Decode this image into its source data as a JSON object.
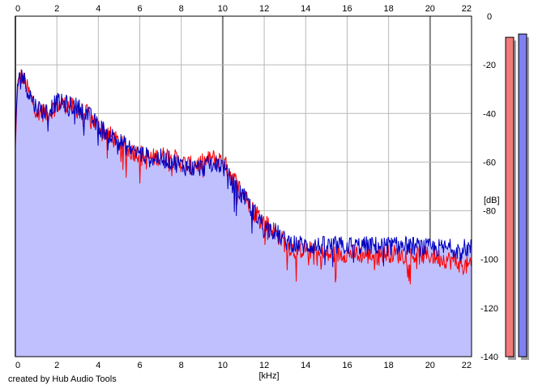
{
  "chart_data": {
    "type": "area",
    "title": "",
    "xlabel": "[kHz]",
    "ylabel": "[dB]",
    "xlim": [
      0,
      22
    ],
    "ylim": [
      -140,
      0
    ],
    "x_ticks": [
      0,
      2,
      4,
      6,
      8,
      10,
      12,
      14,
      16,
      18,
      20,
      22
    ],
    "y_ticks": [
      0,
      -20,
      -40,
      -60,
      -80,
      -100,
      -120,
      -140
    ],
    "grid": true,
    "fill_color": "#c0c0ff",
    "series": [
      {
        "color": "#ff0000",
        "envelope": [
          [
            0,
            -55
          ],
          [
            0.1,
            -28
          ],
          [
            0.3,
            -24
          ],
          [
            0.6,
            -30
          ],
          [
            1.0,
            -38
          ],
          [
            1.5,
            -40
          ],
          [
            2.0,
            -36
          ],
          [
            2.5,
            -36
          ],
          [
            3.0,
            -38
          ],
          [
            3.5,
            -40
          ],
          [
            4.0,
            -45
          ],
          [
            4.5,
            -48
          ],
          [
            5.0,
            -52
          ],
          [
            5.5,
            -55
          ],
          [
            6.0,
            -56
          ],
          [
            6.5,
            -58
          ],
          [
            7.0,
            -57
          ],
          [
            7.5,
            -57
          ],
          [
            8.0,
            -60
          ],
          [
            8.5,
            -61
          ],
          [
            9.0,
            -60
          ],
          [
            9.5,
            -58
          ],
          [
            10.0,
            -59
          ],
          [
            10.5,
            -66
          ],
          [
            11.0,
            -73
          ],
          [
            11.5,
            -79
          ],
          [
            12.0,
            -84
          ],
          [
            12.5,
            -88
          ],
          [
            13.0,
            -93
          ],
          [
            13.5,
            -96
          ],
          [
            14.0,
            -95
          ],
          [
            14.5,
            -97
          ],
          [
            15.0,
            -98
          ],
          [
            16.0,
            -97
          ],
          [
            17.0,
            -98
          ],
          [
            18.0,
            -97
          ],
          [
            19.0,
            -98
          ],
          [
            20.0,
            -98
          ],
          [
            21.0,
            -100
          ],
          [
            22.0,
            -103
          ]
        ]
      },
      {
        "color": "#0000c0",
        "envelope": [
          [
            0,
            -50
          ],
          [
            0.1,
            -27
          ],
          [
            0.3,
            -23
          ],
          [
            0.6,
            -30
          ],
          [
            1.0,
            -37
          ],
          [
            1.5,
            -39
          ],
          [
            2.0,
            -35
          ],
          [
            2.5,
            -36
          ],
          [
            3.0,
            -37
          ],
          [
            3.5,
            -40
          ],
          [
            4.0,
            -45
          ],
          [
            4.5,
            -48
          ],
          [
            5.0,
            -51
          ],
          [
            5.5,
            -54
          ],
          [
            6.0,
            -56
          ],
          [
            6.5,
            -58
          ],
          [
            7.0,
            -58
          ],
          [
            7.5,
            -59
          ],
          [
            8.0,
            -61
          ],
          [
            8.5,
            -62
          ],
          [
            9.0,
            -62
          ],
          [
            9.5,
            -60
          ],
          [
            10.0,
            -61
          ],
          [
            10.5,
            -69
          ],
          [
            11.0,
            -74
          ],
          [
            11.5,
            -80
          ],
          [
            12.0,
            -86
          ],
          [
            12.5,
            -88
          ],
          [
            13.0,
            -92
          ],
          [
            13.5,
            -93
          ],
          [
            14.0,
            -94
          ],
          [
            14.5,
            -94
          ],
          [
            15.0,
            -94
          ],
          [
            16.0,
            -94
          ],
          [
            17.0,
            -94
          ],
          [
            18.0,
            -94
          ],
          [
            19.0,
            -94
          ],
          [
            20.0,
            -95
          ],
          [
            21.0,
            -95
          ],
          [
            22.0,
            -95
          ]
        ]
      }
    ]
  },
  "meters": [
    {
      "color": "#f07a7a",
      "level": 0.975
    },
    {
      "color": "#8080f0",
      "level": 0.985
    }
  ],
  "credit": "created by Hub Audio Tools"
}
